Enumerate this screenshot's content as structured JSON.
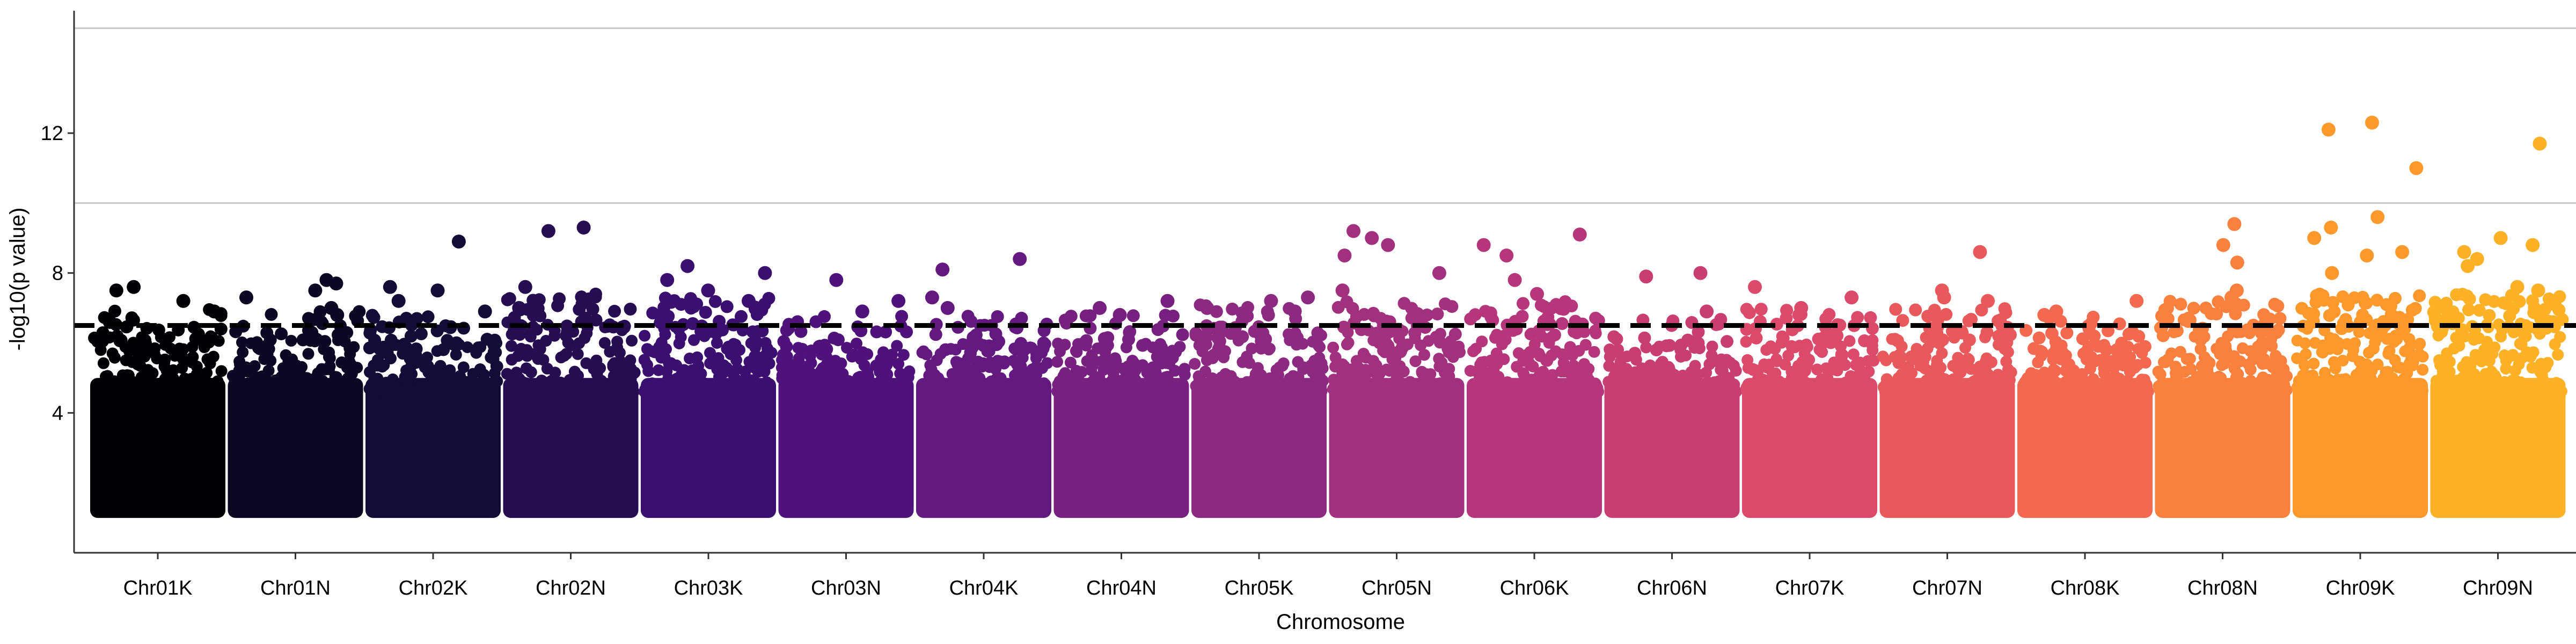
{
  "chart_data": {
    "type": "scatter",
    "xlabel": "Chromosome",
    "ylabel": "-log10(p value)",
    "ylim": [
      0,
      15.5
    ],
    "y_ticks": [
      4,
      8,
      12
    ],
    "grid_major_y": [
      10,
      15
    ],
    "threshold": 6.5,
    "categories": [
      "Chr01K",
      "Chr01N",
      "Chr02K",
      "Chr02N",
      "Chr03K",
      "Chr03N",
      "Chr04K",
      "Chr04N",
      "Chr05K",
      "Chr05N",
      "Chr06K",
      "Chr06N",
      "Chr07K",
      "Chr07N",
      "Chr08K",
      "Chr08N",
      "Chr09K",
      "Chr09N"
    ],
    "colors": [
      "#000004",
      "#0a0822",
      "#150b37",
      "#260c51",
      "#3b0f6f",
      "#4f127b",
      "#63197f",
      "#78207f",
      "#8c2981",
      "#a1307e",
      "#b5367a",
      "#c83e73",
      "#db4a6a",
      "#e8595c",
      "#f2694f",
      "#f9803d",
      "#fd992c",
      "#fdb127"
    ],
    "series": [
      {
        "name": "Chr01K",
        "base_max": 6.2,
        "peak_count": 25,
        "top": [
          7.6,
          7.5,
          7.2,
          6.9,
          6.6
        ]
      },
      {
        "name": "Chr01N",
        "base_max": 6.1,
        "peak_count": 25,
        "top": [
          7.8,
          7.7,
          7.5,
          7.3,
          7.0,
          6.8
        ]
      },
      {
        "name": "Chr02K",
        "base_max": 6.0,
        "peak_count": 30,
        "top": [
          8.9,
          7.6,
          7.5,
          7.2,
          6.9
        ]
      },
      {
        "name": "Chr02N",
        "base_max": 6.6,
        "peak_count": 30,
        "top": [
          9.3,
          9.2,
          7.6,
          7.0
        ]
      },
      {
        "name": "Chr03K",
        "base_max": 6.5,
        "peak_count": 35,
        "top": [
          8.2,
          8.0,
          7.8,
          7.5,
          7.2
        ]
      },
      {
        "name": "Chr03N",
        "base_max": 6.0,
        "peak_count": 20,
        "top": [
          7.8,
          7.2,
          6.9
        ]
      },
      {
        "name": "Chr04K",
        "base_max": 6.0,
        "peak_count": 30,
        "top": [
          8.4,
          8.1,
          7.3,
          7.0
        ]
      },
      {
        "name": "Chr04N",
        "base_max": 6.0,
        "peak_count": 20,
        "top": [
          7.2,
          7.0,
          6.8
        ]
      },
      {
        "name": "Chr05K",
        "base_max": 6.3,
        "peak_count": 30,
        "top": [
          7.3,
          7.2,
          7.0,
          6.9
        ]
      },
      {
        "name": "Chr05N",
        "base_max": 6.4,
        "peak_count": 35,
        "top": [
          9.2,
          9.0,
          8.8,
          8.5,
          8.0,
          7.5
        ]
      },
      {
        "name": "Chr06K",
        "base_max": 6.4,
        "peak_count": 35,
        "top": [
          9.1,
          8.8,
          8.5,
          7.8,
          7.4
        ]
      },
      {
        "name": "Chr06N",
        "base_max": 5.9,
        "peak_count": 20,
        "top": [
          8.0,
          7.9,
          6.9
        ]
      },
      {
        "name": "Chr07K",
        "base_max": 6.2,
        "peak_count": 30,
        "top": [
          7.6,
          7.3,
          7.0
        ]
      },
      {
        "name": "Chr07N",
        "base_max": 6.2,
        "peak_count": 30,
        "top": [
          8.6,
          7.5,
          7.3,
          7.2
        ]
      },
      {
        "name": "Chr08K",
        "base_max": 6.0,
        "peak_count": 25,
        "top": [
          7.2,
          6.9,
          6.8
        ]
      },
      {
        "name": "Chr08N",
        "base_max": 6.4,
        "peak_count": 40,
        "top": [
          9.4,
          8.8,
          8.3,
          7.5,
          7.3
        ]
      },
      {
        "name": "Chr09K",
        "base_max": 6.6,
        "peak_count": 45,
        "top": [
          12.3,
          12.1,
          11.0,
          9.6,
          9.3,
          9.0,
          8.6,
          8.5,
          8.0
        ]
      },
      {
        "name": "Chr09N",
        "base_max": 6.6,
        "peak_count": 45,
        "top": [
          11.7,
          9.0,
          8.8,
          8.6,
          8.4,
          8.2,
          7.6,
          7.5
        ]
      }
    ]
  }
}
